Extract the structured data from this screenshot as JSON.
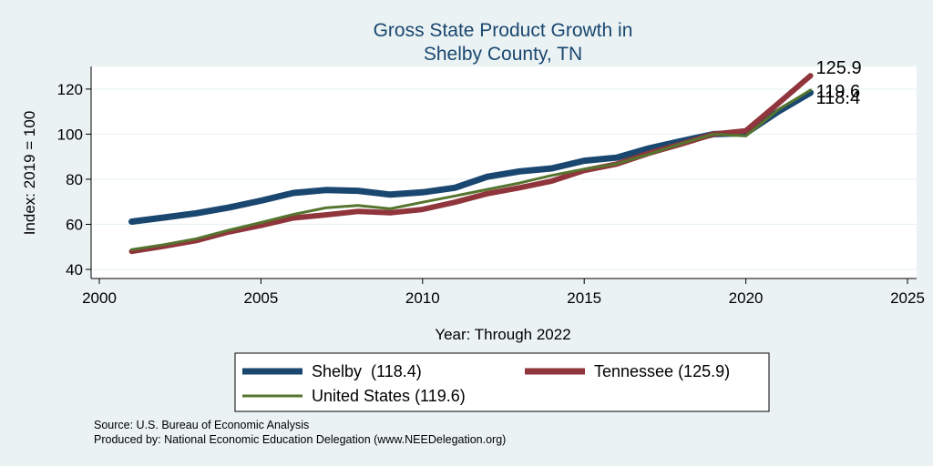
{
  "chart_data": {
    "type": "line",
    "title": "Gross State Product Growth in",
    "subtitle": "Shelby County, TN",
    "xlabel": "Year: Through 2022",
    "ylabel": "Index: 2019 = 100",
    "xlim": [
      2000,
      2025
    ],
    "ylim": [
      40,
      126
    ],
    "xticks": [
      2000,
      2005,
      2010,
      2015,
      2020,
      2025
    ],
    "yticks": [
      40,
      60,
      80,
      100,
      120
    ],
    "grid": true,
    "legend_position": "bottom",
    "series": [
      {
        "name": "Shelby  (118.4)",
        "end_label": "118.4",
        "color": "#1a476f",
        "x": [
          2001,
          2002,
          2003,
          2004,
          2005,
          2006,
          2007,
          2008,
          2009,
          2010,
          2011,
          2012,
          2013,
          2014,
          2015,
          2016,
          2017,
          2018,
          2019,
          2020,
          2021,
          2022
        ],
        "y": [
          61.2,
          63.0,
          64.9,
          67.4,
          70.5,
          73.9,
          75.2,
          74.9,
          73.2,
          74.2,
          76.2,
          81.1,
          83.5,
          84.8,
          88.2,
          89.6,
          93.7,
          96.9,
          100.0,
          100.4,
          110.0,
          118.4
        ]
      },
      {
        "name": "Tennessee (125.9)",
        "end_label": "125.9",
        "color": "#90353b",
        "x": [
          2001,
          2002,
          2003,
          2004,
          2005,
          2006,
          2007,
          2008,
          2009,
          2010,
          2011,
          2012,
          2013,
          2014,
          2015,
          2016,
          2017,
          2018,
          2019,
          2020,
          2021,
          2022
        ],
        "y": [
          48.0,
          50.3,
          52.8,
          56.6,
          59.5,
          62.8,
          64.2,
          65.7,
          65.1,
          66.6,
          69.8,
          73.6,
          76.2,
          79.2,
          83.9,
          86.7,
          91.5,
          95.6,
          100.0,
          101.5,
          113.6,
          125.9
        ]
      },
      {
        "name": "United States (119.6)",
        "end_label": "119.6",
        "color": "#55752f",
        "x": [
          2001,
          2002,
          2003,
          2004,
          2005,
          2006,
          2007,
          2008,
          2009,
          2010,
          2011,
          2012,
          2013,
          2014,
          2015,
          2016,
          2017,
          2018,
          2019,
          2020,
          2021,
          2022
        ],
        "y": [
          48.8,
          51.0,
          53.6,
          57.4,
          60.8,
          64.4,
          67.3,
          68.4,
          66.9,
          69.8,
          72.6,
          75.5,
          78.3,
          81.7,
          84.5,
          86.8,
          91.1,
          95.8,
          100.0,
          99.2,
          110.8,
          119.6
        ]
      }
    ]
  },
  "notes": {
    "source": "Source: U.S. Bureau of Economic Analysis",
    "produced_by": "Produced by: National Economic Education Delegation (www.NEEDelegation.org)"
  }
}
